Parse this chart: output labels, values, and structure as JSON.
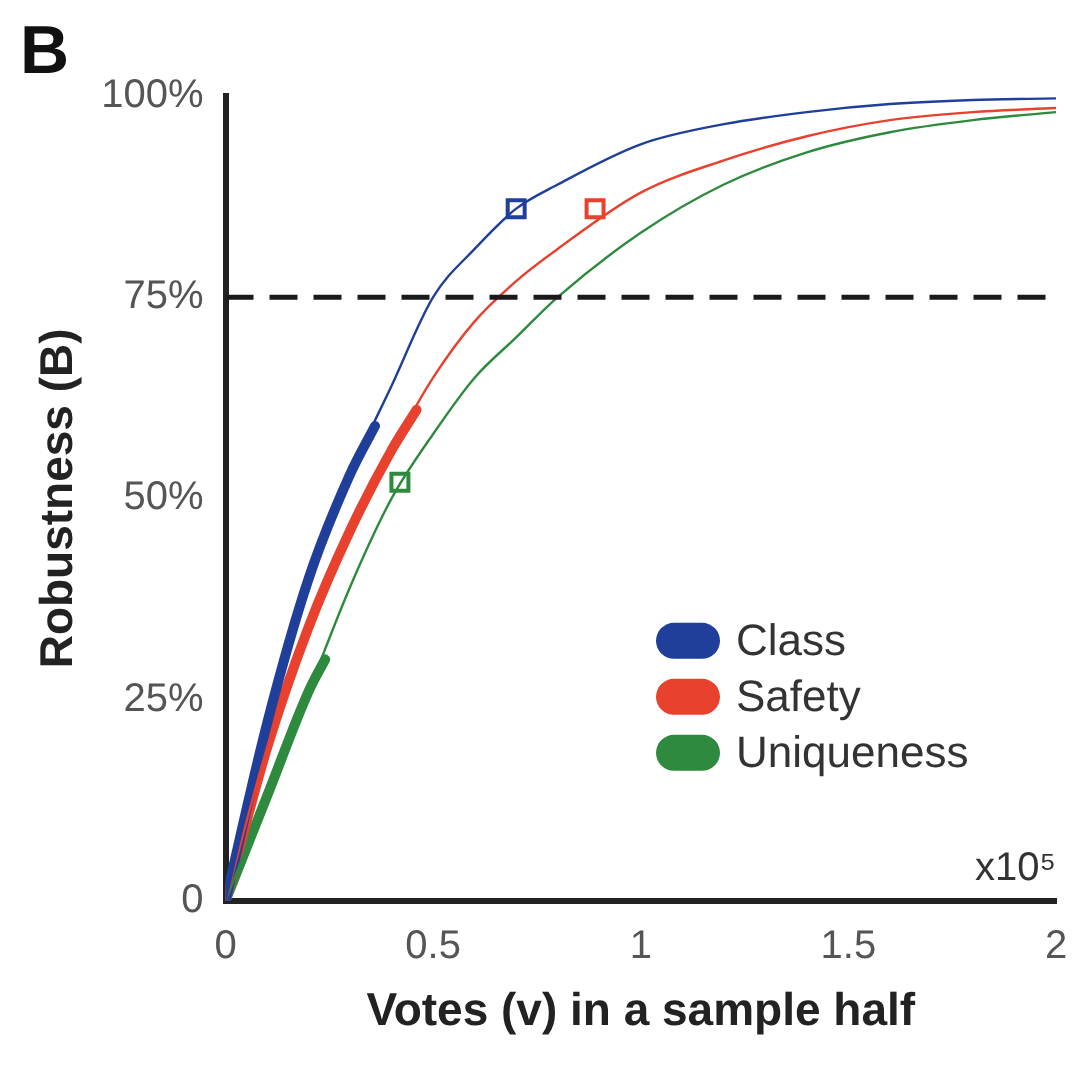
{
  "chart_data": {
    "type": "line",
    "title": "B",
    "xlabel": "Votes (v) in a sample half",
    "ylabel": "Robustness (B)",
    "annotations": [
      "x10⁵"
    ],
    "xlim": [
      0,
      2
    ],
    "xticks": [
      0,
      0.5,
      1,
      1.5,
      2
    ],
    "ylim": [
      0,
      100
    ],
    "yticks": [
      {
        "value": 0,
        "label": "0"
      },
      {
        "value": 25,
        "label": "25%"
      },
      {
        "value": 50,
        "label": "50%"
      },
      {
        "value": 75,
        "label": "75%"
      },
      {
        "value": 100,
        "label": "100%"
      }
    ],
    "grid": false,
    "legend": "bottom right",
    "ref_lines": [
      {
        "axis": "y",
        "value": 75,
        "color": "#1a1a1a",
        "line_style": "dashed"
      }
    ],
    "series": [
      {
        "name": "Class",
        "color": "#1f3f9a",
        "x": [
          0,
          0.1,
          0.2,
          0.3,
          0.4,
          0.5,
          0.6,
          0.7,
          0.8,
          1.0,
          1.2,
          1.4,
          1.6,
          1.8,
          2.0
        ],
        "values": [
          0,
          22,
          40,
          53,
          64,
          75,
          81,
          86,
          89,
          94,
          96.5,
          98,
          99,
          99.5,
          99.7
        ]
      },
      {
        "name": "Safety",
        "color": "#e8412e",
        "x": [
          0,
          0.1,
          0.2,
          0.3,
          0.4,
          0.5,
          0.6,
          0.7,
          0.8,
          1.0,
          1.2,
          1.4,
          1.6,
          1.8,
          2.0
        ],
        "values": [
          0,
          19,
          34,
          46,
          56,
          65,
          72,
          77,
          81,
          88,
          92,
          95,
          97,
          98,
          98.5
        ]
      },
      {
        "name": "Uniqueness",
        "color": "#2e8a3e",
        "x": [
          0,
          0.1,
          0.2,
          0.3,
          0.4,
          0.5,
          0.6,
          0.7,
          0.8,
          1.0,
          1.2,
          1.4,
          1.6,
          1.8,
          2.0
        ],
        "values": [
          0,
          13,
          26,
          39,
          50,
          58,
          65,
          70,
          75,
          83,
          89,
          93,
          95.5,
          97,
          98
        ]
      },
      {
        "color": "#1f3f9a",
        "x": [
          0,
          0.1,
          0.2,
          0.3,
          0.36
        ],
        "values": [
          0,
          22,
          40,
          53,
          59
        ]
      },
      {
        "color": "#e8412e",
        "x": [
          0,
          0.1,
          0.2,
          0.3,
          0.4,
          0.46
        ],
        "values": [
          0,
          19,
          34,
          46,
          56,
          61
        ]
      },
      {
        "color": "#2e8a3e",
        "x": [
          0,
          0.1,
          0.2,
          0.24
        ],
        "values": [
          0,
          13,
          26,
          30
        ]
      },
      {
        "type": "scatter",
        "marker": "square",
        "color": "#1f3f9a",
        "x": [
          0.7
        ],
        "values": [
          86
        ]
      },
      {
        "type": "scatter",
        "marker": "square",
        "color": "#e8412e",
        "x": [
          0.89
        ],
        "values": [
          86
        ]
      },
      {
        "type": "scatter",
        "marker": "square",
        "color": "#2e8a3e",
        "x": [
          0.42
        ],
        "values": [
          52
        ]
      }
    ]
  }
}
